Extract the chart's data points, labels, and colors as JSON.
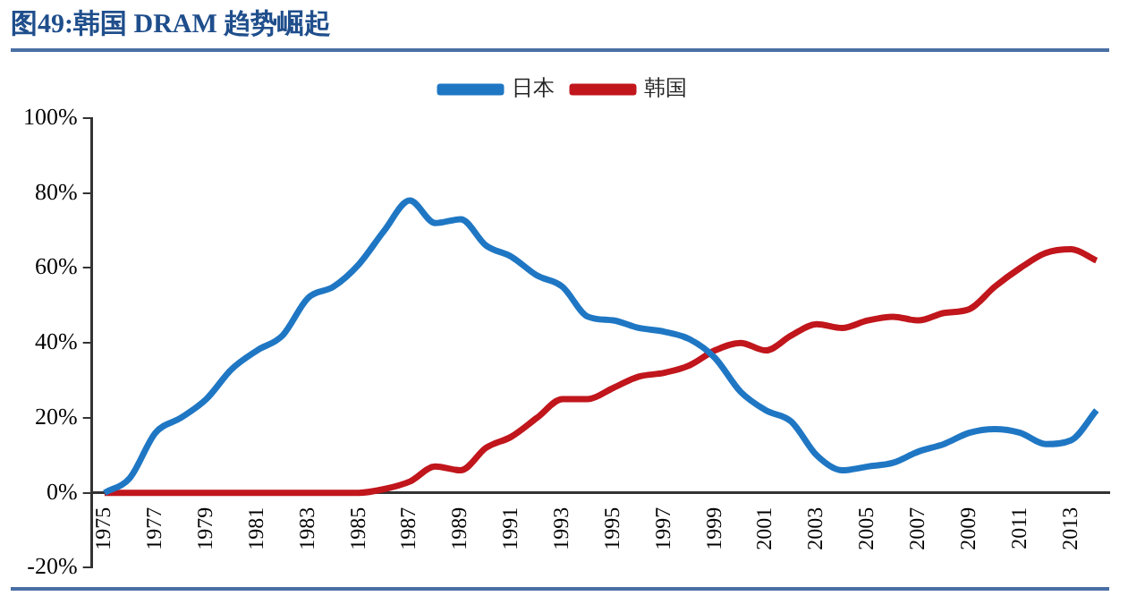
{
  "chart_data": {
    "type": "line",
    "title": "图49:韩国 DRAM 趋势崛起",
    "categories": [
      "1975",
      null,
      "1977",
      null,
      "1979",
      null,
      "1981",
      null,
      "1983",
      null,
      "1985",
      null,
      "1987",
      null,
      "1989",
      null,
      "1991",
      null,
      "1993",
      null,
      "1995",
      null,
      "1997",
      null,
      "1999",
      null,
      "2001",
      null,
      "2003",
      null,
      "2005",
      null,
      "2007",
      null,
      "2009",
      null,
      "2011",
      null,
      "2013",
      null
    ],
    "series": [
      {
        "name": "日本",
        "color": "#1f77c4",
        "values": [
          0,
          4,
          16,
          20,
          25,
          33,
          38,
          42,
          52,
          55,
          61,
          70,
          78,
          72,
          73,
          66,
          63,
          58,
          55,
          47,
          46,
          44,
          43,
          41,
          36,
          27,
          22,
          19,
          10,
          6,
          7,
          8,
          11,
          13,
          16,
          17,
          16,
          13,
          14,
          22
        ]
      },
      {
        "name": "韩国",
        "color": "#c0161c",
        "values": [
          0,
          0,
          0,
          0,
          0,
          0,
          0,
          0,
          0,
          0,
          0,
          1,
          3,
          7,
          6,
          12,
          15,
          20,
          25,
          25,
          28,
          31,
          32,
          34,
          38,
          40,
          38,
          42,
          45,
          44,
          46,
          47,
          46,
          48,
          49,
          55,
          60,
          64,
          65,
          62
        ]
      }
    ],
    "ylim": [
      -20,
      100
    ],
    "yticks": [
      {
        "value": -20,
        "label": "-20%"
      },
      {
        "value": 0,
        "label": "0%"
      },
      {
        "value": 20,
        "label": "20%"
      },
      {
        "value": 40,
        "label": "40%"
      },
      {
        "value": 60,
        "label": "60%"
      },
      {
        "value": 80,
        "label": "80%"
      },
      {
        "value": 100,
        "label": "100%"
      }
    ],
    "grid": false,
    "legend": "top",
    "marker": "none",
    "line_style": "solid"
  }
}
